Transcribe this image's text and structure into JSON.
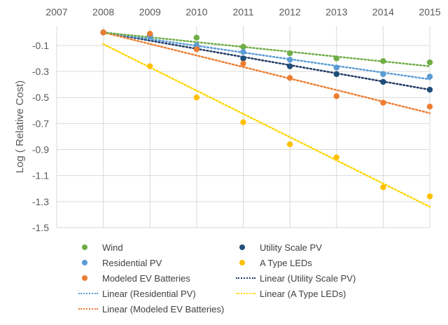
{
  "chart_data": {
    "type": "scatter",
    "title": "",
    "xlabel": "",
    "ylabel": "Log ( Relative Cost)",
    "x_ticks": [
      "2007",
      "2008",
      "2009",
      "2010",
      "2011",
      "2012",
      "2013",
      "2014",
      "2015"
    ],
    "y_ticks": [
      "-0.1",
      "-0.3",
      "-0.5",
      "-0.7",
      "-0.9",
      "-1.1",
      "-1.3",
      "-1.5"
    ],
    "xlim": [
      2007,
      2015
    ],
    "ylim": [
      -1.5,
      0.05
    ],
    "x_axis_position": "top",
    "grid": true,
    "legend_position": "bottom",
    "x": [
      2008,
      2009,
      2010,
      2011,
      2012,
      2013,
      2014,
      2015
    ],
    "series": [
      {
        "name": "Wind",
        "color": "#70ad47",
        "values": [
          0,
          -0.02,
          -0.04,
          -0.11,
          -0.16,
          -0.2,
          -0.22,
          -0.23
        ]
      },
      {
        "name": "Utility Scale PV",
        "color": "#1f4e79",
        "values": [
          0,
          -0.02,
          -0.12,
          -0.2,
          -0.26,
          -0.32,
          -0.38,
          -0.44
        ]
      },
      {
        "name": "Residential PV",
        "color": "#5b9bd5",
        "values": [
          0,
          -0.03,
          -0.1,
          -0.15,
          -0.21,
          -0.27,
          -0.32,
          -0.34
        ]
      },
      {
        "name": "A Type LEDs",
        "color": "#ffc000",
        "values": [
          null,
          -0.26,
          -0.5,
          -0.69,
          -0.86,
          -0.96,
          -1.19,
          -1.26
        ]
      },
      {
        "name": "Modeled EV Batteries",
        "color": "#ed7d31",
        "values": [
          0,
          -0.01,
          -0.13,
          -0.24,
          -0.35,
          -0.49,
          -0.54,
          -0.57
        ]
      }
    ],
    "trendlines": [
      {
        "name": "Linear (Utility Scale PV)",
        "color": "#1f3864",
        "from": [
          2008,
          0
        ],
        "to": [
          2015,
          -0.44
        ]
      },
      {
        "name": "Linear (Residential PV)",
        "color": "#5b9bd5",
        "from": [
          2008,
          0
        ],
        "to": [
          2015,
          -0.36
        ]
      },
      {
        "name": "Linear (A Type LEDs)",
        "color": "#ffd700",
        "from": [
          2008,
          -0.09
        ],
        "to": [
          2015,
          -1.34
        ]
      },
      {
        "name": "Linear (Modeled EV Batteries)",
        "color": "#ed7d31",
        "from": [
          2008,
          0
        ],
        "to": [
          2015,
          -0.62
        ]
      },
      {
        "name": "Linear (Wind)",
        "color": "#70ad47",
        "from": [
          2008,
          0
        ],
        "to": [
          2015,
          -0.26
        ]
      }
    ]
  },
  "legend": [
    {
      "label": "Wind",
      "kind": "dot",
      "color": "#70ad47"
    },
    {
      "label": "Utility Scale PV",
      "kind": "dot",
      "color": "#1f4e79"
    },
    {
      "label": "Residential PV",
      "kind": "dot",
      "color": "#5b9bd5"
    },
    {
      "label": "A Type LEDs",
      "kind": "dot",
      "color": "#ffc000"
    },
    {
      "label": "Modeled EV Batteries",
      "kind": "dot",
      "color": "#ed7d31"
    },
    {
      "label": "Linear (Utility Scale PV)",
      "kind": "dash",
      "color": "#1f3864"
    },
    {
      "label": "Linear (Residential PV)",
      "kind": "dash",
      "color": "#5b9bd5"
    },
    {
      "label": "Linear (A Type LEDs)",
      "kind": "dash",
      "color": "#ffd700"
    },
    {
      "label": "Linear (Modeled EV Batteries)",
      "kind": "dash",
      "color": "#ed7d31"
    }
  ]
}
